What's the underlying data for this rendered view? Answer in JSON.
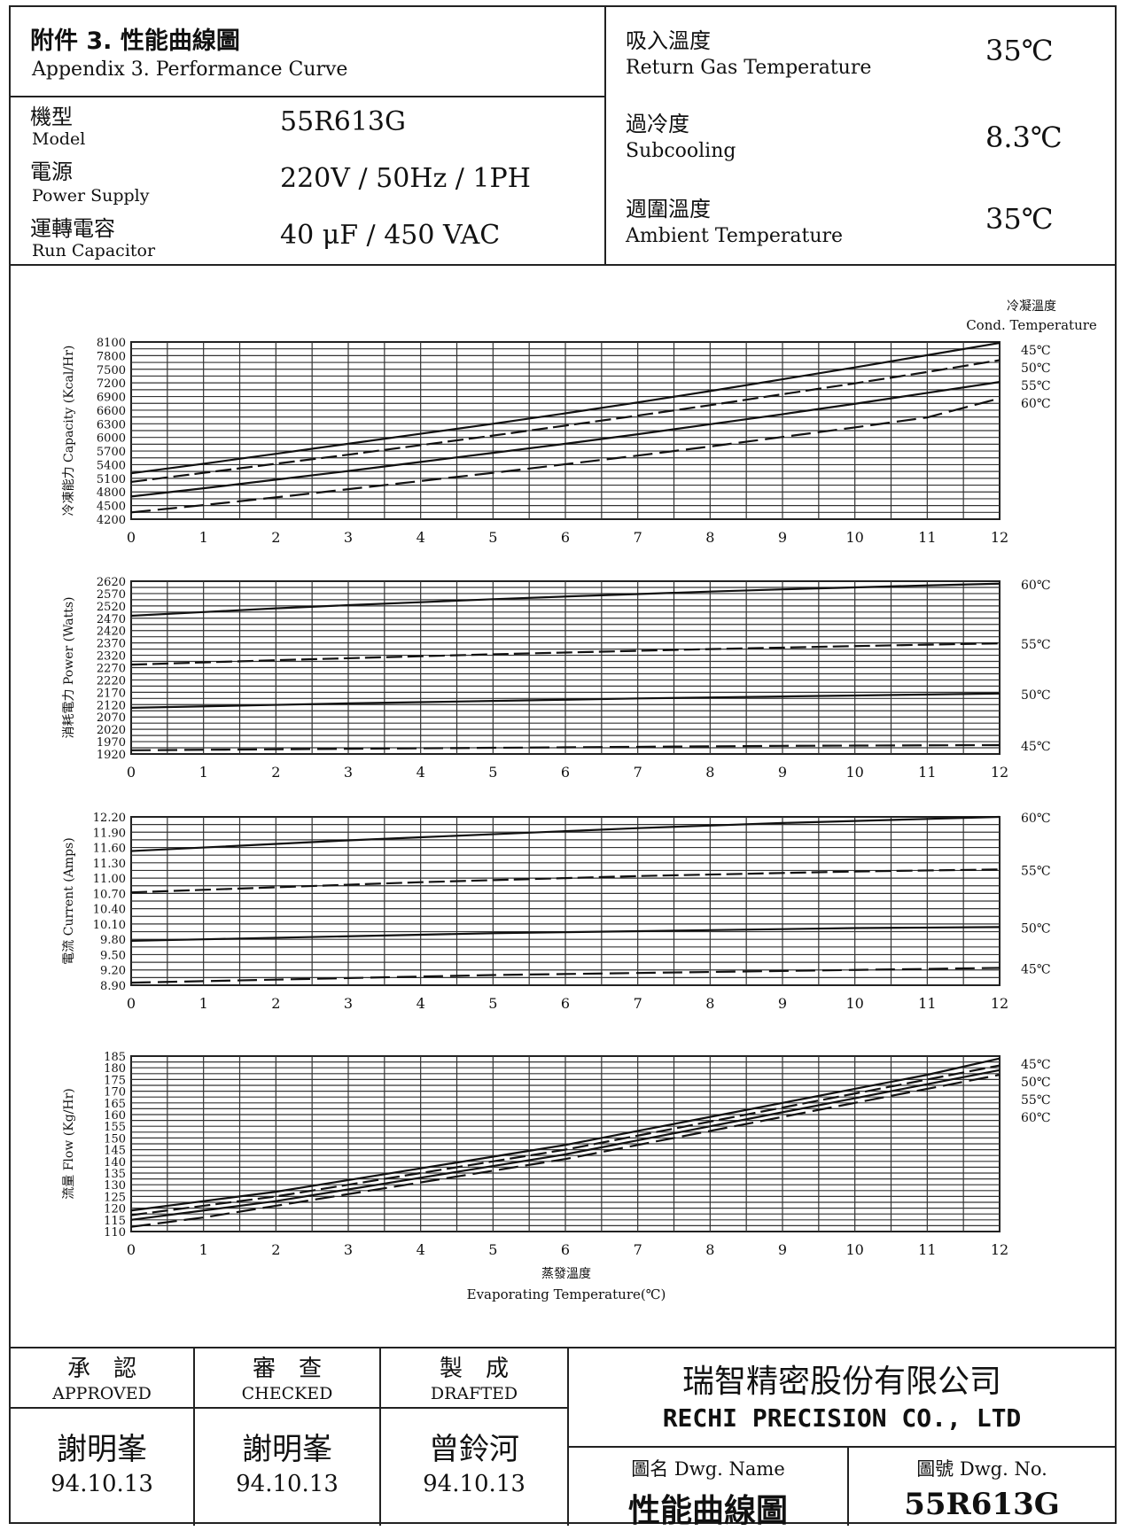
{
  "header": {
    "title_cn": "附件 3. 性能曲線圖",
    "title_en": "Appendix 3. Performance Curve",
    "model_label_cn": "機型",
    "model_label_en": "Model",
    "model_value": "55R613G",
    "power_label_cn": "電源",
    "power_label_en": "Power Supply",
    "power_value": "220V / 50Hz / 1PH",
    "cap_label_cn": "運轉電容",
    "cap_label_en": "Run Capacitor",
    "cap_value": "40 μF / 450 VAC",
    "return_gas_cn": "吸入溫度",
    "return_gas_en": "Return Gas Temperature",
    "return_gas_value": "35℃",
    "subcool_cn": "過冷度",
    "subcool_en": "Subcooling",
    "subcool_value": "8.3℃",
    "ambient_cn": "週圍溫度",
    "ambient_en": "Ambient Temperature",
    "ambient_value": "35℃"
  },
  "legend": {
    "cn": "冷凝溫度",
    "en": "Cond. Temperature"
  },
  "chart_data": [
    {
      "type": "line",
      "ylabel": "冷凍能力 Capacity (Kcal/Hr)",
      "xlabel": "",
      "x": [
        0,
        1,
        2,
        3,
        4,
        5,
        6,
        7,
        8,
        9,
        10,
        11,
        12
      ],
      "xlim": [
        0,
        12
      ],
      "ylim": [
        4200,
        8100
      ],
      "yticks": [
        4200,
        4500,
        4800,
        5100,
        5400,
        5700,
        6000,
        6300,
        6600,
        6900,
        7200,
        7500,
        7800,
        8100
      ],
      "series": [
        {
          "name": "45℃",
          "values": [
            5210,
            5420,
            5640,
            5860,
            6080,
            6300,
            6530,
            6770,
            7020,
            7280,
            7540,
            7810,
            8080
          ]
        },
        {
          "name": "50℃",
          "values": [
            5020,
            5220,
            5420,
            5620,
            5830,
            6040,
            6260,
            6480,
            6710,
            6950,
            7190,
            7440,
            7700
          ]
        },
        {
          "name": "55℃",
          "values": [
            4700,
            4880,
            5070,
            5260,
            5460,
            5660,
            5860,
            6070,
            6290,
            6510,
            6740,
            6980,
            7220
          ]
        },
        {
          "name": "60℃",
          "values": [
            4350,
            4510,
            4680,
            4860,
            5040,
            5220,
            5410,
            5600,
            5800,
            6010,
            6220,
            6440,
            6860
          ]
        }
      ]
    },
    {
      "type": "line",
      "ylabel": "消耗電力 Power (Watts)",
      "xlabel": "",
      "x": [
        0,
        1,
        2,
        3,
        4,
        5,
        6,
        7,
        8,
        9,
        10,
        11,
        12
      ],
      "xlim": [
        0,
        12
      ],
      "ylim": [
        1920,
        2620
      ],
      "yticks": [
        1920,
        1970,
        2020,
        2070,
        2120,
        2170,
        2220,
        2270,
        2320,
        2370,
        2420,
        2470,
        2520,
        2570,
        2620
      ],
      "series": [
        {
          "name": "60℃",
          "values": [
            2480,
            2495,
            2510,
            2523,
            2535,
            2547,
            2558,
            2568,
            2578,
            2587,
            2595,
            2603,
            2610
          ]
        },
        {
          "name": "55℃",
          "values": [
            2282,
            2291,
            2300,
            2308,
            2316,
            2324,
            2331,
            2338,
            2345,
            2351,
            2357,
            2363,
            2368
          ]
        },
        {
          "name": "50℃",
          "values": [
            2107,
            2113,
            2119,
            2125,
            2130,
            2135,
            2140,
            2145,
            2149,
            2153,
            2157,
            2161,
            2165
          ]
        },
        {
          "name": "45℃",
          "values": [
            1935,
            1937,
            1939,
            1941,
            1943,
            1945,
            1947,
            1949,
            1951,
            1953,
            1954,
            1955,
            1956
          ]
        }
      ]
    },
    {
      "type": "line",
      "ylabel": "電流 Current (Amps)",
      "xlabel": "",
      "x": [
        0,
        1,
        2,
        3,
        4,
        5,
        6,
        7,
        8,
        9,
        10,
        11,
        12
      ],
      "xlim": [
        0,
        12
      ],
      "ylim": [
        8.9,
        12.2
      ],
      "yticks": [
        8.9,
        9.2,
        9.5,
        9.8,
        10.1,
        10.4,
        10.7,
        11.0,
        11.3,
        11.6,
        11.9,
        12.2
      ],
      "yticklabels": [
        "8.90",
        "9.20",
        "9.50",
        "9.80",
        "10.10",
        "10.40",
        "10.70",
        "11.00",
        "11.30",
        "11.60",
        "11.90",
        "12.20"
      ],
      "series": [
        {
          "name": "60℃",
          "values": [
            11.53,
            11.6,
            11.67,
            11.74,
            11.8,
            11.86,
            11.92,
            11.98,
            12.03,
            12.08,
            12.12,
            12.16,
            12.2
          ]
        },
        {
          "name": "55℃",
          "values": [
            10.72,
            10.77,
            10.82,
            10.87,
            10.92,
            10.96,
            11.0,
            11.04,
            11.07,
            11.1,
            11.13,
            11.15,
            11.17
          ]
        },
        {
          "name": "50℃",
          "values": [
            9.77,
            9.8,
            9.83,
            9.86,
            9.89,
            9.92,
            9.94,
            9.96,
            9.98,
            10.0,
            10.02,
            10.03,
            10.04
          ]
        },
        {
          "name": "45℃",
          "values": [
            8.95,
            8.98,
            9.01,
            9.04,
            9.07,
            9.1,
            9.12,
            9.14,
            9.16,
            9.18,
            9.2,
            9.22,
            9.24
          ]
        }
      ]
    },
    {
      "type": "line",
      "ylabel": "流量 Flow (Kg/Hr)",
      "xlabel": "蒸發溫度 Evaporating Temperature(℃)",
      "x": [
        0,
        1,
        2,
        3,
        4,
        5,
        6,
        7,
        8,
        9,
        10,
        11,
        12
      ],
      "xlim": [
        0,
        12
      ],
      "ylim": [
        110,
        185
      ],
      "yticks": [
        110,
        115,
        120,
        125,
        130,
        135,
        140,
        145,
        150,
        155,
        160,
        165,
        170,
        175,
        180,
        185
      ],
      "series": [
        {
          "name": "45℃",
          "values": [
            119,
            123,
            127,
            132,
            137,
            142,
            147,
            153,
            159,
            165,
            171,
            177,
            184
          ]
        },
        {
          "name": "50℃",
          "values": [
            117,
            121,
            125,
            130,
            135,
            140,
            145,
            151,
            157,
            163,
            169,
            175,
            181
          ]
        },
        {
          "name": "55℃",
          "values": [
            115,
            119,
            123,
            128,
            133,
            138,
            143,
            149,
            155,
            161,
            167,
            173,
            179
          ]
        },
        {
          "name": "60℃",
          "values": [
            112,
            116,
            121,
            126,
            131,
            136,
            141,
            147,
            153,
            159,
            165,
            171,
            177
          ]
        }
      ]
    }
  ],
  "footer": {
    "approved_cn": "承　認",
    "approved_en": "APPROVED",
    "checked_cn": "審　查",
    "checked_en": "CHECKED",
    "drafted_cn": "製　成",
    "drafted_en": "DRAFTED",
    "approved_sig": "謝明峯",
    "approved_date": "94.10.13",
    "checked_sig": "謝明峯",
    "checked_date": "94.10.13",
    "drafted_sig": "曾鈴河",
    "drafted_date": "94.10.13",
    "company_cn": "瑞智精密股份有限公司",
    "company_en": "RECHI PRECISION CO., LTD",
    "dwg_name_label": "圖名 Dwg. Name",
    "dwg_no_label": "圖號 Dwg. No.",
    "dwg_name": "性能曲線圖",
    "dwg_no": "55R613G"
  }
}
